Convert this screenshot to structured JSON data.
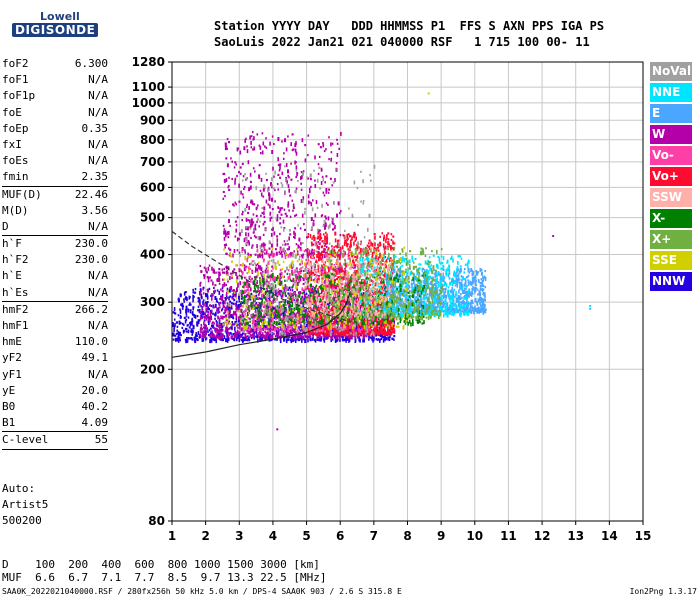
{
  "logo": {
    "line1": "Lowell",
    "line2": "DIGISONDE"
  },
  "header": {
    "line1": "Station YYYY DAY   DDD HHMMSS P1  FFS S AXN PPS IGA PS",
    "line2": "SaoLuis 2022 Jan21 021 040000 RSF   1 715 100 00- 11"
  },
  "scaled_parameters": [
    {
      "label": "foF2",
      "value": "6.300"
    },
    {
      "label": "foF1",
      "value": "N/A"
    },
    {
      "label": "foF1p",
      "value": "N/A"
    },
    {
      "label": "foE",
      "value": "N/A"
    },
    {
      "label": "foEp",
      "value": "0.35"
    },
    {
      "label": "fxI",
      "value": "N/A"
    },
    {
      "label": "foEs",
      "value": "N/A"
    },
    {
      "label": "fmin",
      "value": "2.35"
    },
    {
      "label": "MUF(D)",
      "value": "22.46",
      "sep": true
    },
    {
      "label": "M(D)",
      "value": "3.56"
    },
    {
      "label": "D",
      "value": "N/A"
    },
    {
      "label": "h`F",
      "value": "230.0",
      "sep": true
    },
    {
      "label": "h`F2",
      "value": "230.0"
    },
    {
      "label": "h`E",
      "value": "N/A"
    },
    {
      "label": "h`Es",
      "value": "N/A"
    },
    {
      "label": "hmF2",
      "value": "266.2",
      "sep": true
    },
    {
      "label": "hmF1",
      "value": "N/A"
    },
    {
      "label": "hmE",
      "value": "110.0"
    },
    {
      "label": "yF2",
      "value": "49.1"
    },
    {
      "label": "yF1",
      "value": "N/A"
    },
    {
      "label": "yE",
      "value": "20.0"
    },
    {
      "label": "B0",
      "value": "40.2"
    },
    {
      "label": "B1",
      "value": "4.09"
    },
    {
      "label": "C-level",
      "value": "55",
      "sep": true
    }
  ],
  "autoscaling": {
    "line1": "Auto:",
    "line2": "Artist5",
    "line3": "500200"
  },
  "legend": [
    {
      "label": "NoVal",
      "color": "#a0a0a0"
    },
    {
      "label": "NNE",
      "color": "#00e5ff"
    },
    {
      "label": "E",
      "color": "#4aa6ff"
    },
    {
      "label": "W",
      "color": "#b400a8"
    },
    {
      "label": "Vo-",
      "color": "#ff3fa8"
    },
    {
      "label": "Vo+",
      "color": "#ff0a30"
    },
    {
      "label": "SSW",
      "color": "#ffb0a8"
    },
    {
      "label": "X-",
      "color": "#008000"
    },
    {
      "label": "X+",
      "color": "#70b040"
    },
    {
      "label": "SSE",
      "color": "#d0d000"
    },
    {
      "label": "NNW",
      "color": "#2400e0"
    }
  ],
  "muf_table": {
    "line1": "D    100  200  400  600  800 1000 1500 3000 [km]",
    "line2": "MUF  6.6  6.7  7.1  7.7  8.5  9.7 13.3 22.5 [MHz]"
  },
  "footer": {
    "left": "SAA0K_2022021040000.RSF / 280fx256h 50 kHz 5.0 km / DPS-4 SAA0K 903 / 2.6 S 315.8 E",
    "right": "Ion2Png 1.3.17"
  },
  "chart_data": {
    "type": "scatter",
    "title": "",
    "xlabel": "",
    "ylabel": "",
    "x_unit": "MHz",
    "y_unit": "km",
    "xlim": [
      1,
      15
    ],
    "ylim": [
      80,
      1280
    ],
    "y_scale": "log",
    "x_ticks": [
      1,
      2,
      3,
      4,
      5,
      6,
      7,
      8,
      9,
      10,
      11,
      12,
      13,
      14,
      15
    ],
    "y_ticks": [
      80,
      200,
      300,
      400,
      500,
      600,
      700,
      800,
      900,
      1000,
      1100,
      1280
    ],
    "grid": true,
    "legend_placement": "right-outside",
    "ordinary_trace_curve": [
      [
        1,
        215
      ],
      [
        2,
        222
      ],
      [
        3,
        232
      ],
      [
        4,
        240
      ],
      [
        5,
        250
      ],
      [
        5.6,
        262
      ],
      [
        6.0,
        280
      ],
      [
        6.2,
        300
      ],
      [
        6.3,
        320
      ]
    ],
    "profile_curve": [
      [
        1,
        460
      ],
      [
        1.6,
        420
      ],
      [
        2.4,
        380
      ],
      [
        3.3,
        340
      ],
      [
        4.3,
        305
      ],
      [
        5.2,
        285
      ],
      [
        6.0,
        272
      ],
      [
        6.3,
        266
      ]
    ],
    "echo_regions": [
      {
        "code": "NNW",
        "x": [
          1.0,
          7.6
        ],
        "h": [
          240,
          330
        ],
        "weight": 5
      },
      {
        "code": "W",
        "x": [
          1.8,
          6.8
        ],
        "h": [
          245,
          380
        ],
        "weight": 4
      },
      {
        "code": "W",
        "x": [
          2.5,
          6.0
        ],
        "h": [
          400,
          850
        ],
        "weight": 2
      },
      {
        "code": "Vo+",
        "x": [
          5.0,
          7.6
        ],
        "h": [
          250,
          460
        ],
        "weight": 5
      },
      {
        "code": "Vo-",
        "x": [
          3.0,
          7.0
        ],
        "h": [
          255,
          420
        ],
        "weight": 2
      },
      {
        "code": "E",
        "x": [
          7.3,
          10.3
        ],
        "h": [
          285,
          370
        ],
        "weight": 4
      },
      {
        "code": "NNE",
        "x": [
          6.5,
          9.8
        ],
        "h": [
          280,
          400
        ],
        "weight": 2
      },
      {
        "code": "X-",
        "x": [
          3.0,
          8.5
        ],
        "h": [
          265,
          360
        ],
        "weight": 2
      },
      {
        "code": "X+",
        "x": [
          5.5,
          9.0
        ],
        "h": [
          275,
          420
        ],
        "weight": 2
      },
      {
        "code": "SSE",
        "x": [
          2.5,
          8.0
        ],
        "h": [
          260,
          420
        ],
        "weight": 1
      },
      {
        "code": "SSW",
        "x": [
          5.0,
          7.5
        ],
        "h": [
          280,
          400
        ],
        "weight": 1
      },
      {
        "code": "NoVal",
        "x": [
          3.0,
          7.0
        ],
        "h": [
          250,
          700
        ],
        "weight": 1
      }
    ],
    "isolated_points": [
      {
        "x": 8.6,
        "h": 1065,
        "code": "SSE"
      },
      {
        "x": 12.3,
        "h": 450,
        "code": "W"
      },
      {
        "x": 13.4,
        "h": 295,
        "code": "NNE"
      },
      {
        "x": 13.4,
        "h": 290,
        "code": "E"
      },
      {
        "x": 4.1,
        "h": 140,
        "code": "W"
      }
    ]
  }
}
